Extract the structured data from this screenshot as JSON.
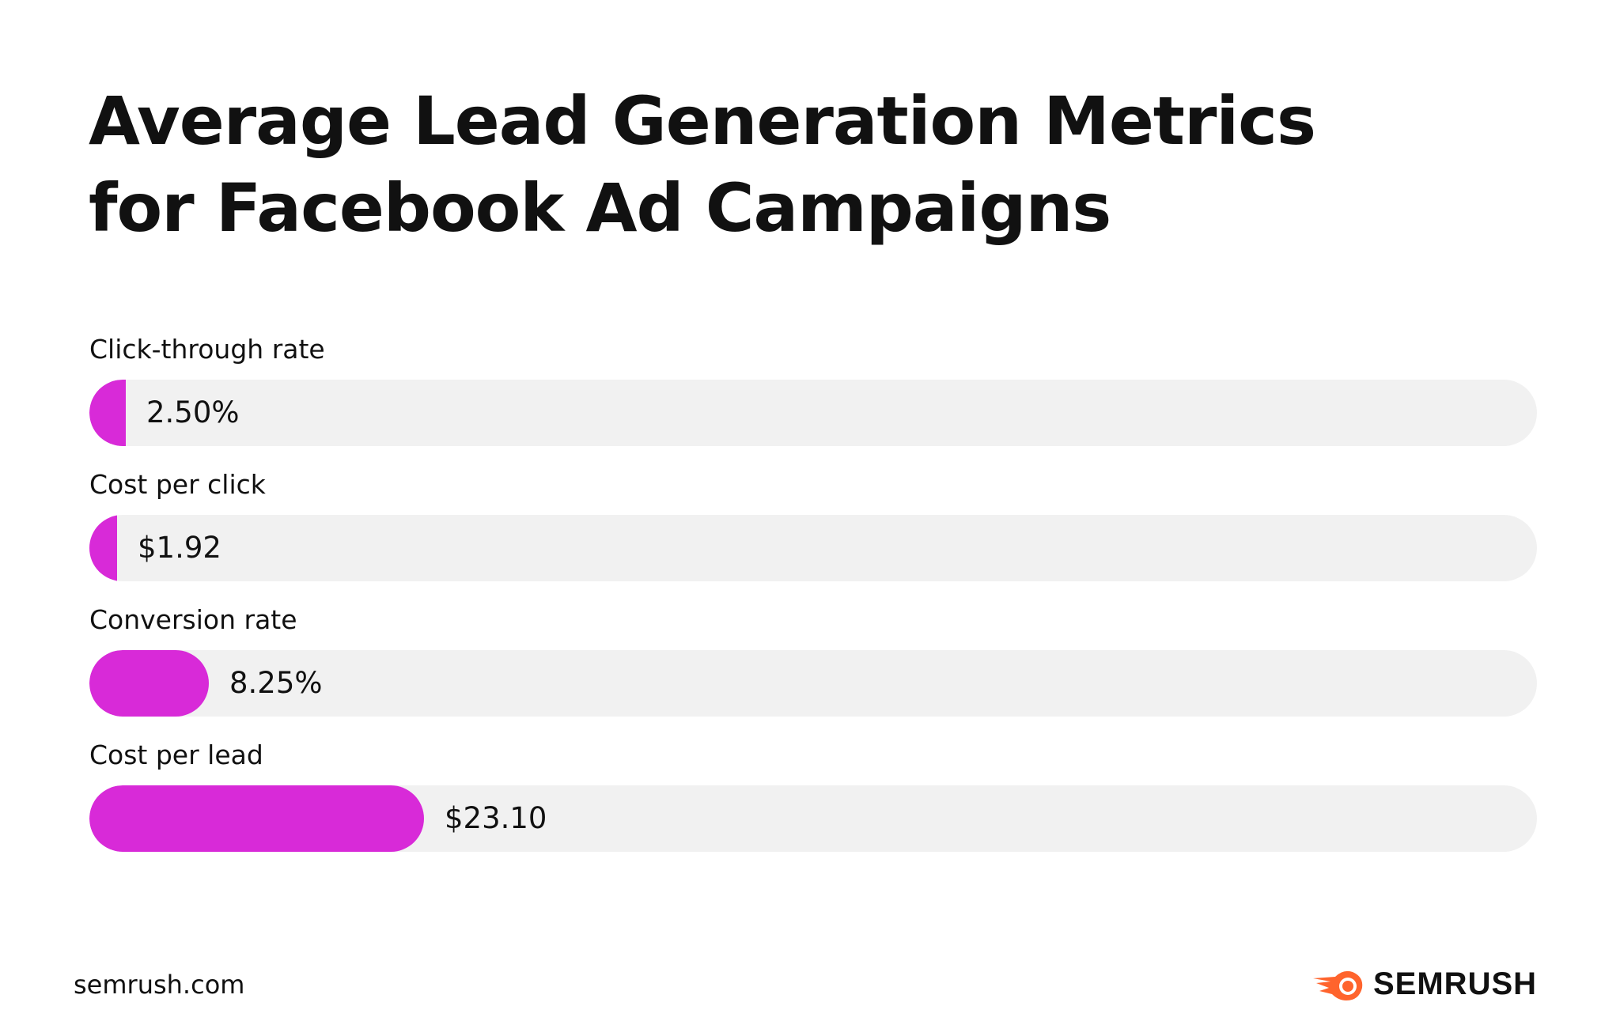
{
  "title_lines": [
    "Average Lead Generation Metrics",
    "for Facebook Ad Campaigns"
  ],
  "chart_data": {
    "type": "bar",
    "orientation": "horizontal",
    "title": "Average Lead Generation Metrics for Facebook Ad Campaigns",
    "categories": [
      "Click-through rate",
      "Cost per click",
      "Conversion rate",
      "Cost per lead"
    ],
    "values": [
      2.5,
      1.92,
      8.25,
      23.1
    ],
    "value_labels": [
      "2.50%",
      "$1.92",
      "8.25%",
      "$23.10"
    ],
    "xlim": [
      0,
      100
    ],
    "grid": false,
    "legend": "none"
  },
  "colors": {
    "bar": "#d82ad8",
    "track": "#f1f1f1",
    "text": "#111111",
    "logo_accent": "#ff642d"
  },
  "footer": {
    "site": "semrush.com",
    "logo_text": "SEMRUSH",
    "logo_icon": "semrush-fireball-icon"
  }
}
